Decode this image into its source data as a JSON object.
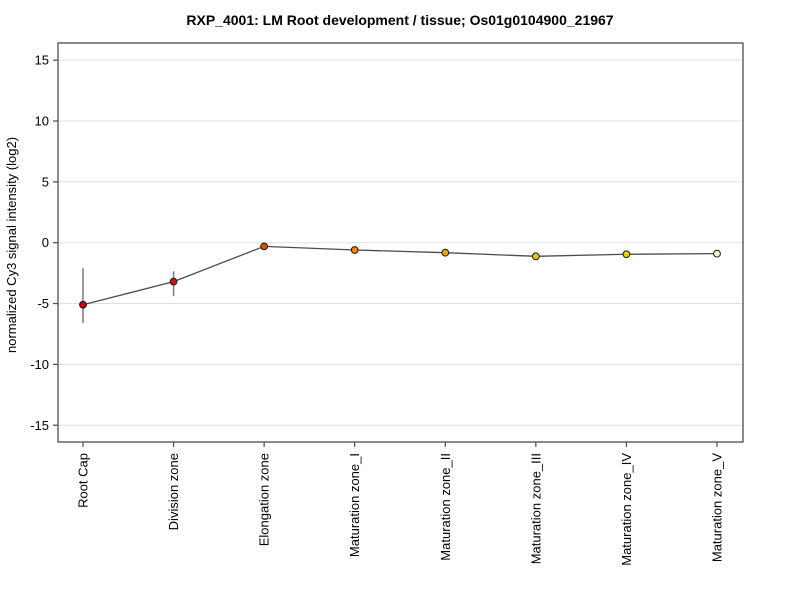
{
  "title": "RXP_4001: LM Root development / tissue; Os01g0104900_21967",
  "chart_data": {
    "type": "line",
    "title": "RXP_4001: LM Root development / tissue; Os01g0104900_21967",
    "xlabel": "",
    "ylabel": "normalized Cy3 signal intensity (log2)",
    "ylim": [
      -16.4,
      16.4
    ],
    "yticks": [
      15,
      10,
      5,
      0,
      -5,
      -10,
      -15
    ],
    "grid": true,
    "legend": "none",
    "categories": [
      "Root Cap",
      "Division zone",
      "Elongation zone",
      "Maturation zone_I",
      "Maturation zone_II",
      "Maturation zone_III",
      "Maturation zone_IV",
      "Maturation zone_V"
    ],
    "series": [
      {
        "name": "normalized Cy3 signal intensity",
        "values": [
          -5.1,
          -3.2,
          -0.3,
          -0.6,
          -0.82,
          -1.12,
          -0.95,
          -0.9
        ],
        "error_high": [
          -2.1,
          -2.35,
          -0.1,
          -0.35,
          -0.6,
          -0.9,
          -0.65,
          -0.75
        ],
        "error_low": [
          -6.6,
          -4.4,
          -0.5,
          -0.9,
          -1.05,
          -1.3,
          -1.25,
          -1.05
        ],
        "point_colors": [
          "#cc0000",
          "#d01400",
          "#e04c00",
          "#ee8800",
          "#f0a800",
          "#e6c800",
          "#e6d400",
          "#f5f3c2"
        ]
      }
    ],
    "colors": {
      "line": "#4d4d4d",
      "error_bar": "#808080",
      "marker_outline": "#1a1a1a",
      "frame": "#4d4d4d",
      "gridline": "#e0e0e0",
      "background": "#ffffff"
    }
  }
}
